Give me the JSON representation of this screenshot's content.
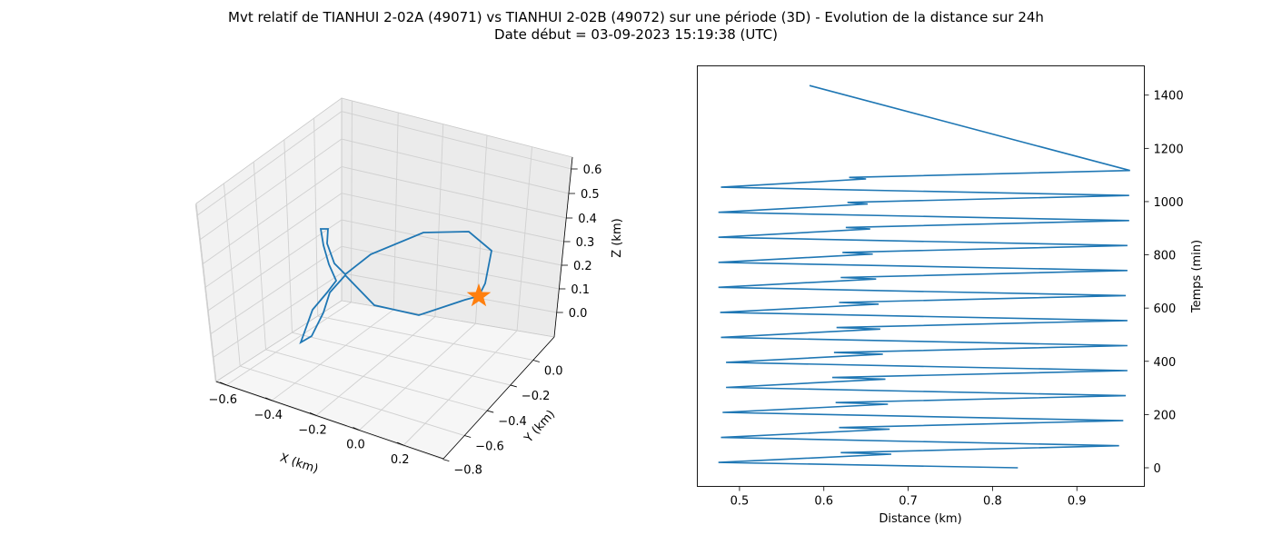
{
  "title_line1": "Mvt relatif de TIANHUI 2-02A (49071) vs TIANHUI 2-02B (49072) sur une période (3D) - Evolution de la distance sur 24h",
  "title_line2": "Date début = 03-09-2023 15:19:38 (UTC)",
  "colors": {
    "line": "#1f77b4",
    "marker": "#ff7f0e",
    "pane": "#f2f2f2",
    "grid": "#d0d0d0"
  },
  "chart_data": [
    {
      "type": "line3d",
      "xlabel": "X (km)",
      "ylabel": "Y (km)",
      "zlabel": "Z (km)",
      "x_ticks": [
        "−0.6",
        "−0.4",
        "−0.2",
        "0.0",
        "0.2"
      ],
      "y_ticks": [
        "0.0",
        "−0.2",
        "−0.4",
        "−0.6",
        "−0.8"
      ],
      "z_ticks": [
        "0.0",
        "0.1",
        "0.2",
        "0.3",
        "0.4",
        "0.5",
        "0.6"
      ],
      "marker": "star",
      "grid": true
    },
    {
      "type": "line",
      "xlabel": "Distance (km)",
      "ylabel": "Temps (min)",
      "xlim": [
        0.45,
        0.98
      ],
      "ylim": [
        -70,
        1510
      ],
      "x_ticks": [
        0.5,
        0.6,
        0.7,
        0.8,
        0.9
      ],
      "y_ticks": [
        0,
        200,
        400,
        600,
        800,
        1000,
        1200,
        1400
      ],
      "x_tick_labels": [
        "0.5",
        "0.6",
        "0.7",
        "0.8",
        "0.9"
      ],
      "y_tick_labels": [
        "0",
        "200",
        "400",
        "600",
        "800",
        "1000",
        "1200",
        "1400"
      ],
      "series": [
        {
          "x": [
            0.83,
            0.475,
            0.68,
            0.62,
            0.95,
            0.478,
            0.678,
            0.618,
            0.955,
            0.48,
            0.676,
            0.614,
            0.958,
            0.484,
            0.673,
            0.61,
            0.96,
            0.484,
            0.67,
            0.612,
            0.96,
            0.478,
            0.667,
            0.615,
            0.96,
            0.477,
            0.665,
            0.618,
            0.958,
            0.475,
            0.662,
            0.62,
            0.96,
            0.475,
            0.658,
            0.622,
            0.96,
            0.475,
            0.655,
            0.626,
            0.962,
            0.475,
            0.652,
            0.628,
            0.962,
            0.478,
            0.65,
            0.63,
            0.963,
            0.583
          ],
          "y": [
            0,
            20,
            51,
            57,
            83,
            114,
            145,
            151,
            177,
            208,
            239,
            245,
            271,
            302,
            333,
            339,
            365,
            396,
            427,
            433,
            459,
            490,
            521,
            527,
            553,
            584,
            615,
            621,
            647,
            678,
            709,
            715,
            741,
            772,
            803,
            809,
            835,
            866,
            897,
            903,
            929,
            960,
            991,
            997,
            1023,
            1054,
            1085,
            1091,
            1117,
            1436
          ]
        }
      ]
    }
  ]
}
